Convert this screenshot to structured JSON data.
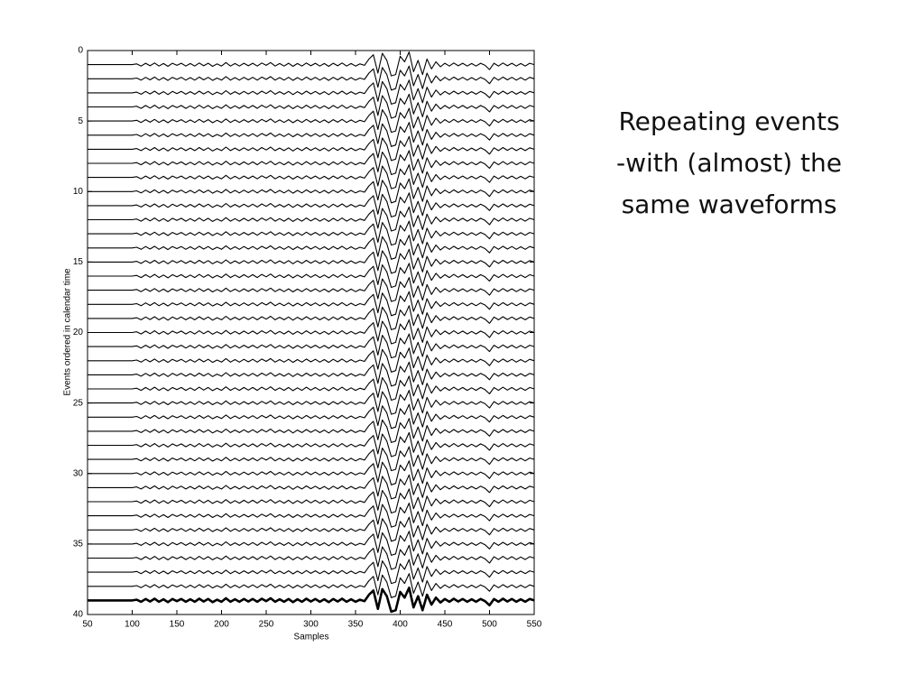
{
  "slide": {
    "text": [
      "Repeating events",
      "-with (almost) the",
      "same waveforms"
    ]
  },
  "chart_data": {
    "type": "waveform-stack",
    "xlabel": "Samples",
    "ylabel": "Events ordered in calendar time",
    "xlim": [
      50,
      550
    ],
    "ylim": [
      0,
      40
    ],
    "xticks": [
      50,
      100,
      150,
      200,
      250,
      300,
      350,
      400,
      450,
      500,
      550
    ],
    "yticks": [
      0,
      5,
      10,
      15,
      20,
      25,
      30,
      35,
      40
    ],
    "y_inverted": true,
    "color": "#000000",
    "highlight_trace": 39,
    "traces": [
      1,
      2,
      3,
      4,
      5,
      6,
      7,
      8,
      9,
      10,
      11,
      12,
      13,
      14,
      15,
      16,
      17,
      18,
      19,
      20,
      21,
      22,
      23,
      24,
      25,
      26,
      27,
      28,
      29,
      30,
      31,
      32,
      33,
      34,
      35,
      36,
      37,
      38,
      39
    ],
    "waveform": {
      "x": [
        50,
        55,
        60,
        65,
        70,
        75,
        80,
        85,
        90,
        95,
        100,
        105,
        110,
        115,
        120,
        125,
        130,
        135,
        140,
        145,
        150,
        155,
        160,
        165,
        170,
        175,
        180,
        185,
        190,
        195,
        200,
        205,
        210,
        215,
        220,
        225,
        230,
        235,
        240,
        245,
        250,
        255,
        260,
        265,
        270,
        275,
        280,
        285,
        290,
        295,
        300,
        305,
        310,
        315,
        320,
        325,
        330,
        335,
        340,
        345,
        350,
        355,
        360,
        365,
        370,
        375,
        380,
        385,
        390,
        395,
        400,
        405,
        410,
        415,
        420,
        425,
        430,
        435,
        440,
        445,
        450,
        455,
        460,
        465,
        470,
        475,
        480,
        485,
        490,
        495,
        500,
        505,
        510,
        515,
        520,
        525,
        530,
        535,
        540,
        545,
        550
      ],
      "values": [
        0,
        0,
        0,
        0,
        0,
        0,
        0,
        0,
        0,
        0,
        0,
        0.05,
        -0.1,
        0.1,
        -0.08,
        0.12,
        -0.1,
        0.08,
        -0.12,
        0.1,
        -0.05,
        0.1,
        -0.1,
        0.08,
        -0.1,
        0.12,
        -0.08,
        0.1,
        -0.12,
        0.05,
        -0.1,
        0.15,
        -0.1,
        0.08,
        -0.1,
        0.1,
        -0.08,
        0.1,
        -0.1,
        0.12,
        -0.05,
        0.15,
        -0.1,
        0.08,
        -0.1,
        0.1,
        -0.12,
        0.08,
        -0.1,
        0.12,
        -0.08,
        0.1,
        -0.1,
        0.08,
        -0.12,
        0.1,
        -0.08,
        0.12,
        -0.1,
        0.08,
        -0.1,
        0.05,
        -0.05,
        0.4,
        0.7,
        -0.6,
        0.8,
        0.3,
        -0.8,
        -0.7,
        0.6,
        0.2,
        0.9,
        -0.5,
        0.3,
        -0.7,
        0.4,
        -0.3,
        0.2,
        -0.15,
        0.1,
        -0.1,
        0.12,
        -0.08,
        0.1,
        -0.1,
        0.08,
        -0.1,
        0.1,
        -0.05,
        -0.35,
        0.1,
        -0.1,
        0.12,
        -0.08,
        0.1,
        -0.1,
        0.08,
        -0.1,
        0.1,
        0
      ]
    }
  }
}
